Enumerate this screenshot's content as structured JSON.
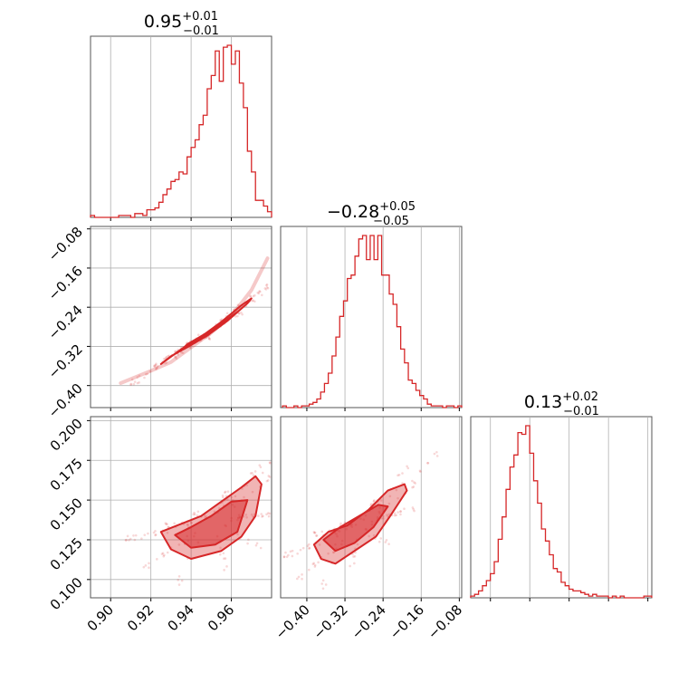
{
  "figure": {
    "kind": "corner-plot",
    "color": "#d62728"
  },
  "chart_data": [
    {
      "type": "histogram",
      "panel": "hist-p0",
      "title_main": "0.95",
      "title_plus": "+0.01",
      "title_minus": "−0.01",
      "xlim": [
        0.89,
        0.98
      ],
      "ticks": [
        0.9,
        0.92,
        0.94,
        0.96
      ],
      "x": [
        0.891,
        0.893,
        0.895,
        0.897,
        0.899,
        0.901,
        0.903,
        0.905,
        0.907,
        0.909,
        0.911,
        0.913,
        0.915,
        0.917,
        0.919,
        0.921,
        0.923,
        0.925,
        0.927,
        0.929,
        0.931,
        0.933,
        0.935,
        0.937,
        0.939,
        0.941,
        0.943,
        0.945,
        0.947,
        0.949,
        0.951,
        0.953,
        0.955,
        0.957,
        0.959,
        0.961,
        0.963,
        0.965,
        0.967,
        0.969,
        0.971,
        0.973,
        0.975,
        0.977,
        0.979
      ],
      "counts": [
        1,
        0,
        0,
        0,
        0,
        0,
        0,
        1,
        1,
        1,
        0,
        2,
        2,
        1,
        4,
        4,
        5,
        8,
        12,
        15,
        19,
        20,
        24,
        23,
        32,
        37,
        41,
        49,
        54,
        68,
        75,
        88,
        72,
        90,
        91,
        81,
        88,
        71,
        58,
        35,
        24,
        9,
        9,
        6,
        3
      ]
    },
    {
      "type": "histogram",
      "panel": "hist-p1",
      "title_main": "−0.28",
      "title_plus": "+0.05",
      "title_minus": "−0.05",
      "xlim": [
        -0.455,
        -0.075
      ],
      "ticks": [
        -0.4,
        -0.32,
        -0.24,
        -0.16,
        -0.08
      ],
      "tick_labels": [
        "−0.40",
        "−0.32",
        "−0.24",
        "−0.16",
        "−0.08"
      ],
      "x": [
        -0.447,
        -0.439,
        -0.431,
        -0.423,
        -0.415,
        -0.407,
        -0.399,
        -0.391,
        -0.383,
        -0.375,
        -0.367,
        -0.359,
        -0.351,
        -0.343,
        -0.335,
        -0.327,
        -0.319,
        -0.311,
        -0.303,
        -0.295,
        -0.287,
        -0.279,
        -0.271,
        -0.263,
        -0.255,
        -0.247,
        -0.239,
        -0.231,
        -0.223,
        -0.215,
        -0.207,
        -0.199,
        -0.191,
        -0.183,
        -0.175,
        -0.167,
        -0.159,
        -0.151,
        -0.143,
        -0.135,
        -0.127,
        -0.119,
        -0.111,
        -0.103,
        -0.095,
        -0.087,
        -0.079
      ],
      "counts": [
        1,
        0,
        0,
        1,
        0,
        1,
        1,
        2,
        3,
        5,
        9,
        14,
        20,
        30,
        41,
        53,
        62,
        75,
        77,
        88,
        98,
        100,
        86,
        100,
        86,
        100,
        77,
        77,
        66,
        60,
        47,
        34,
        26,
        16,
        14,
        10,
        7,
        5,
        2,
        1,
        1,
        1,
        0,
        1,
        1,
        0,
        1
      ]
    },
    {
      "type": "histogram",
      "panel": "hist-p2",
      "title_main": "0.13",
      "title_plus": "+0.02",
      "title_minus": "−0.01",
      "xlim": [
        0.0875,
        0.2025
      ],
      "ticks": [
        0.1,
        0.125,
        0.15,
        0.175,
        0.2
      ],
      "x": [
        0.0887,
        0.0912,
        0.0937,
        0.0962,
        0.0987,
        0.1012,
        0.1037,
        0.1062,
        0.1087,
        0.1112,
        0.1137,
        0.1162,
        0.1187,
        0.1212,
        0.1237,
        0.1262,
        0.1287,
        0.1312,
        0.1337,
        0.1362,
        0.1387,
        0.1412,
        0.1437,
        0.1462,
        0.1487,
        0.1512,
        0.1537,
        0.1562,
        0.1587,
        0.1612,
        0.1637,
        0.1662,
        0.1687,
        0.1712,
        0.1737,
        0.1762,
        0.1787,
        0.1812,
        0.1837,
        0.1862,
        0.1887,
        0.1912,
        0.1937,
        0.1962,
        0.1987,
        0.2012
      ],
      "counts": [
        1,
        2,
        4,
        7,
        10,
        14,
        21,
        34,
        47,
        63,
        76,
        83,
        96,
        95,
        100,
        84,
        68,
        55,
        40,
        33,
        25,
        17,
        15,
        9,
        7,
        5,
        4,
        4,
        3,
        2,
        1,
        2,
        1,
        1,
        1,
        0,
        1,
        0,
        1,
        0,
        0,
        0,
        0,
        0,
        1,
        1
      ]
    },
    {
      "type": "scatter-contour",
      "panel": "p1-vs-p0",
      "x_param": 0,
      "y_param": 1,
      "xlim": [
        0.89,
        0.98
      ],
      "ylim": [
        -0.445,
        -0.075
      ],
      "xticks": [
        0.9,
        0.92,
        0.94,
        0.96
      ],
      "yticks": [
        -0.4,
        -0.32,
        -0.24,
        -0.16,
        -0.08
      ],
      "ytick_labels": [
        "−0.40",
        "−0.32",
        "−0.24",
        "−0.16",
        "−0.08"
      ],
      "trend": [
        [
          0.905,
          -0.395
        ],
        [
          0.92,
          -0.37
        ],
        [
          0.93,
          -0.352
        ],
        [
          0.94,
          -0.322
        ],
        [
          0.95,
          -0.292
        ],
        [
          0.96,
          -0.258
        ],
        [
          0.97,
          -0.205
        ],
        [
          0.978,
          -0.14
        ]
      ],
      "contour_outer": [
        [
          0.925,
          -0.356
        ],
        [
          0.935,
          -0.326
        ],
        [
          0.945,
          -0.3
        ],
        [
          0.955,
          -0.27
        ],
        [
          0.965,
          -0.236
        ],
        [
          0.97,
          -0.222
        ],
        [
          0.968,
          -0.232
        ],
        [
          0.958,
          -0.268
        ],
        [
          0.948,
          -0.298
        ],
        [
          0.938,
          -0.322
        ],
        [
          0.93,
          -0.34
        ],
        [
          0.925,
          -0.356
        ]
      ],
      "contour_inner": [
        [
          0.935,
          -0.328
        ],
        [
          0.945,
          -0.304
        ],
        [
          0.955,
          -0.276
        ],
        [
          0.963,
          -0.25
        ],
        [
          0.958,
          -0.264
        ],
        [
          0.948,
          -0.292
        ],
        [
          0.938,
          -0.316
        ],
        [
          0.935,
          -0.328
        ]
      ]
    },
    {
      "type": "scatter-contour",
      "panel": "p2-vs-p0",
      "x_param": 0,
      "y_param": 2,
      "xlim": [
        0.89,
        0.98
      ],
      "ylim": [
        0.0885,
        0.2025
      ],
      "xticks": [
        0.9,
        0.92,
        0.94,
        0.96
      ],
      "xtick_labels": [
        "0.90",
        "0.92",
        "0.94",
        "0.96"
      ],
      "yticks": [
        0.1,
        0.125,
        0.15,
        0.175,
        0.2
      ],
      "contour_outer": [
        [
          0.925,
          0.13
        ],
        [
          0.93,
          0.119
        ],
        [
          0.94,
          0.113
        ],
        [
          0.955,
          0.118
        ],
        [
          0.965,
          0.127
        ],
        [
          0.972,
          0.14
        ],
        [
          0.975,
          0.16
        ],
        [
          0.972,
          0.165
        ],
        [
          0.965,
          0.158
        ],
        [
          0.955,
          0.149
        ],
        [
          0.945,
          0.14
        ],
        [
          0.935,
          0.135
        ],
        [
          0.925,
          0.13
        ]
      ],
      "contour_inner": [
        [
          0.932,
          0.128
        ],
        [
          0.94,
          0.12
        ],
        [
          0.952,
          0.122
        ],
        [
          0.963,
          0.13
        ],
        [
          0.968,
          0.15
        ],
        [
          0.96,
          0.149
        ],
        [
          0.95,
          0.14
        ],
        [
          0.94,
          0.133
        ],
        [
          0.932,
          0.128
        ]
      ]
    },
    {
      "type": "scatter-contour",
      "panel": "p2-vs-p1",
      "x_param": 1,
      "y_param": 2,
      "xlim": [
        -0.455,
        -0.075
      ],
      "ylim": [
        0.0885,
        0.2025
      ],
      "xticks": [
        -0.4,
        -0.32,
        -0.24,
        -0.16,
        -0.08
      ],
      "xtick_labels": [
        "−0.40",
        "−0.32",
        "−0.24",
        "−0.16",
        "−0.08"
      ],
      "contour_outer": [
        [
          -0.385,
          0.122
        ],
        [
          -0.37,
          0.113
        ],
        [
          -0.34,
          0.11
        ],
        [
          -0.3,
          0.118
        ],
        [
          -0.255,
          0.127
        ],
        [
          -0.225,
          0.14
        ],
        [
          -0.19,
          0.156
        ],
        [
          -0.195,
          0.16
        ],
        [
          -0.23,
          0.156
        ],
        [
          -0.27,
          0.144
        ],
        [
          -0.315,
          0.134
        ],
        [
          -0.355,
          0.13
        ],
        [
          -0.385,
          0.122
        ]
      ],
      "contour_inner": [
        [
          -0.365,
          0.125
        ],
        [
          -0.34,
          0.118
        ],
        [
          -0.3,
          0.123
        ],
        [
          -0.26,
          0.133
        ],
        [
          -0.23,
          0.146
        ],
        [
          -0.25,
          0.147
        ],
        [
          -0.29,
          0.14
        ],
        [
          -0.33,
          0.133
        ],
        [
          -0.365,
          0.125
        ]
      ]
    }
  ]
}
